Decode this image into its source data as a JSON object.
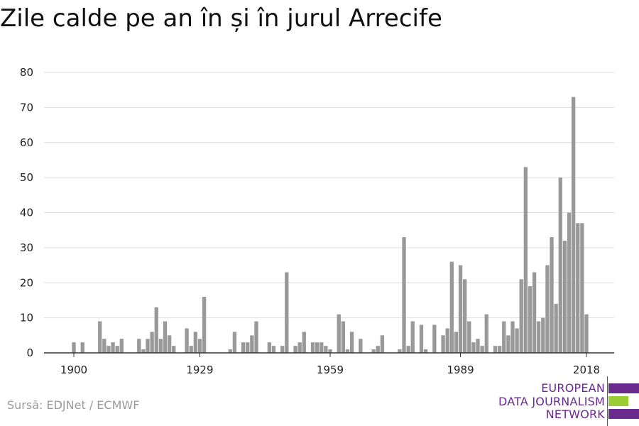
{
  "chart_data": {
    "type": "bar",
    "title": "Zile calde pe an în și în jurul Arrecife",
    "x_start": 1900,
    "x_end": 2018,
    "values": [
      3,
      0,
      3,
      0,
      0,
      0,
      9,
      4,
      2,
      3,
      2,
      4,
      0,
      0,
      0,
      4,
      1,
      4,
      6,
      13,
      4,
      9,
      5,
      2,
      0,
      0,
      7,
      2,
      6,
      4,
      16,
      0,
      0,
      0,
      0,
      0,
      1,
      6,
      0,
      3,
      3,
      5,
      9,
      0,
      0,
      3,
      2,
      0,
      2,
      23,
      0,
      2,
      3,
      6,
      0,
      3,
      3,
      3,
      2,
      1,
      0,
      11,
      9,
      1,
      6,
      0,
      4,
      0,
      0,
      1,
      2,
      5,
      0,
      0,
      0,
      1,
      33,
      2,
      9,
      0,
      8,
      1,
      0,
      8,
      0,
      5,
      7,
      26,
      6,
      25,
      21,
      9,
      3,
      4,
      2,
      11,
      0,
      2,
      2,
      9,
      5,
      9,
      7,
      21,
      53,
      19,
      23,
      9,
      10,
      25,
      33,
      14,
      50,
      32,
      40,
      73,
      37,
      37,
      11
    ],
    "xticks": [
      "1900",
      "1929",
      "1959",
      "1989",
      "2018"
    ],
    "ylim": [
      0,
      80
    ],
    "yticks": [
      "0",
      "10",
      "20",
      "30",
      "40",
      "50",
      "60",
      "70",
      "80"
    ],
    "grid": true,
    "legend": "none",
    "bar_color": "#999999",
    "grid_color": "#dddddd",
    "axis_color": "#333333"
  },
  "source": "Sursă: EDJNet / ECMWF",
  "logo": {
    "lines": [
      "EUROPEAN",
      "DATA JOURNALISM",
      "NETWORK"
    ],
    "color_purple": "#6a2a8e",
    "color_green": "#9acd32"
  }
}
